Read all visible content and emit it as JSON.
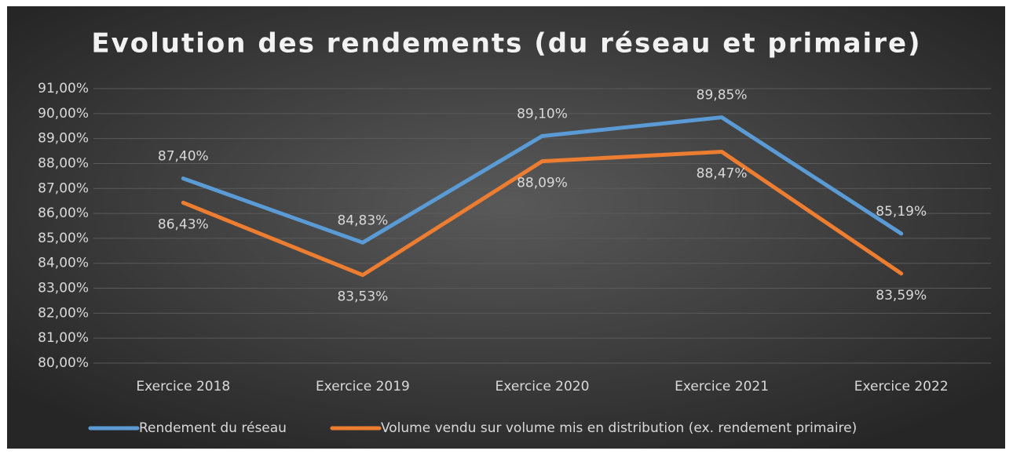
{
  "chart_data": {
    "type": "line",
    "title": "Evolution des rendements (du réseau et primaire)",
    "categories": [
      "Exercice 2018",
      "Exercice 2019",
      "Exercice 2020",
      "Exercice 2021",
      "Exercice 2022"
    ],
    "series": [
      {
        "name": "Rendement du réseau",
        "color": "#5b9bd5",
        "values": [
          87.4,
          84.83,
          89.1,
          89.85,
          85.19
        ],
        "value_labels": [
          "87,40%",
          "84,83%",
          "89,10%",
          "89,85%",
          "85,19%"
        ]
      },
      {
        "name": "Volume vendu sur volume mis en distribution (ex. rendement primaire)",
        "color": "#ed7d31",
        "values": [
          86.43,
          83.53,
          88.09,
          88.47,
          83.59
        ],
        "value_labels": [
          "86,43%",
          "83,53%",
          "88,09%",
          "88,47%",
          "83,59%"
        ]
      }
    ],
    "ylim": [
      80,
      91
    ],
    "yticks": [
      {
        "value": 80,
        "label": "80,00%"
      },
      {
        "value": 81,
        "label": "81,00%"
      },
      {
        "value": 82,
        "label": "82,00%"
      },
      {
        "value": 83,
        "label": "83,00%"
      },
      {
        "value": 84,
        "label": "84,00%"
      },
      {
        "value": 85,
        "label": "85,00%"
      },
      {
        "value": 86,
        "label": "86,00%"
      },
      {
        "value": 87,
        "label": "87,00%"
      },
      {
        "value": 88,
        "label": "88,00%"
      },
      {
        "value": 89,
        "label": "89,00%"
      },
      {
        "value": 90,
        "label": "90,00%"
      },
      {
        "value": 91,
        "label": "91,00%"
      }
    ],
    "grid": true,
    "legend": "bottom"
  }
}
